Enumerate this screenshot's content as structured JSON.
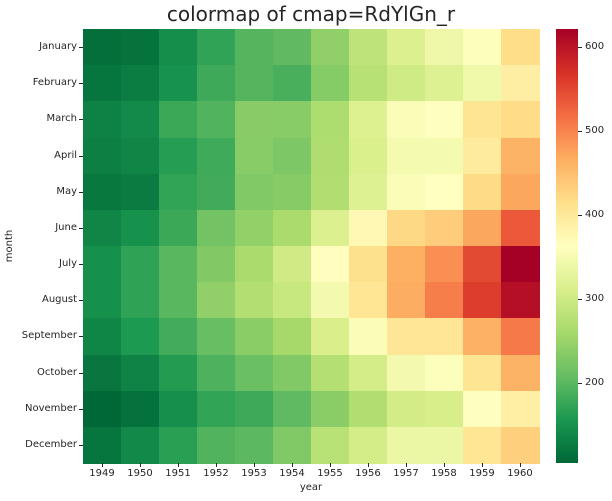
{
  "chart_data": {
    "type": "heatmap",
    "title": "colormap of cmap=RdYlGn_r",
    "xlabel": "year",
    "ylabel": "month",
    "x": [
      "1949",
      "1950",
      "1951",
      "1952",
      "1953",
      "1954",
      "1955",
      "1956",
      "1957",
      "1958",
      "1959",
      "1960"
    ],
    "y": [
      "January",
      "February",
      "March",
      "April",
      "May",
      "June",
      "July",
      "August",
      "September",
      "October",
      "November",
      "December"
    ],
    "values": [
      [
        112,
        115,
        145,
        171,
        196,
        204,
        242,
        284,
        315,
        340,
        360,
        417
      ],
      [
        118,
        126,
        150,
        180,
        196,
        188,
        233,
        277,
        301,
        318,
        342,
        391
      ],
      [
        132,
        141,
        178,
        193,
        236,
        235,
        267,
        317,
        356,
        362,
        406,
        419
      ],
      [
        129,
        135,
        163,
        181,
        235,
        227,
        269,
        313,
        348,
        348,
        396,
        461
      ],
      [
        121,
        125,
        172,
        183,
        229,
        234,
        270,
        318,
        355,
        363,
        420,
        472
      ],
      [
        135,
        149,
        178,
        218,
        243,
        264,
        315,
        374,
        422,
        435,
        472,
        535
      ],
      [
        148,
        170,
        199,
        230,
        264,
        302,
        364,
        413,
        465,
        491,
        548,
        622
      ],
      [
        148,
        170,
        199,
        242,
        272,
        293,
        347,
        405,
        467,
        505,
        559,
        606
      ],
      [
        136,
        158,
        184,
        209,
        237,
        259,
        312,
        355,
        404,
        404,
        463,
        508
      ],
      [
        119,
        133,
        162,
        191,
        211,
        229,
        274,
        306,
        347,
        359,
        407,
        461
      ],
      [
        104,
        114,
        146,
        172,
        180,
        203,
        237,
        271,
        305,
        310,
        362,
        390
      ],
      [
        118,
        140,
        166,
        194,
        201,
        229,
        278,
        306,
        336,
        337,
        405,
        432
      ]
    ],
    "colormap": "RdYlGn_r",
    "colorbar": {
      "min": 104,
      "max": 622,
      "ticks": [
        200,
        300,
        400,
        500,
        600
      ]
    }
  }
}
